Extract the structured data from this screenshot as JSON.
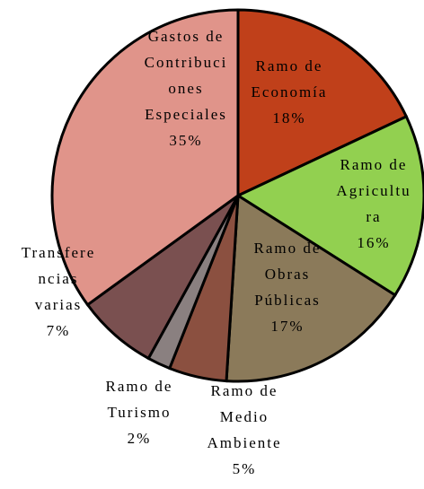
{
  "chart_data": {
    "type": "pie",
    "categories": [
      "Ramo de Economía",
      "Ramo de Agricultura",
      "Ramo de Obras Públicas",
      "Ramo de Medio Ambiente",
      "Ramo de Turismo",
      "Transferencias varias",
      "Gastos de Contribuciones Especiales"
    ],
    "values": [
      18,
      16,
      17,
      5,
      2,
      7,
      35
    ],
    "value_labels": [
      "18%",
      "16%",
      "17%",
      "5%",
      "2%",
      "7%",
      "35%"
    ],
    "colors": [
      "#c0401a",
      "#92d050",
      "#8b7a5a",
      "#8b5040",
      "#8a8080",
      "#7a5050",
      "#e0948a"
    ]
  }
}
